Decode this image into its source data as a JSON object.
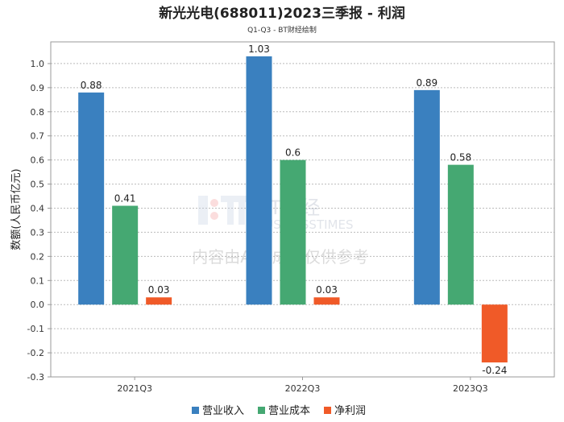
{
  "chart_data": {
    "type": "bar",
    "title": "新光光电(688011)2023三季报 - 利润",
    "subtitle": "Q1-Q3 - BT财经绘制",
    "xlabel": "",
    "ylabel": "数额(人民币亿元)",
    "categories": [
      "2021Q3",
      "2022Q3",
      "2023Q3"
    ],
    "series": [
      {
        "name": "营业收入",
        "color": "#3a80bf",
        "values": [
          0.88,
          1.03,
          0.89
        ],
        "labels": [
          "0.88",
          "1.03",
          "0.89"
        ]
      },
      {
        "name": "营业成本",
        "color": "#45a872",
        "values": [
          0.41,
          0.6,
          0.58
        ],
        "labels": [
          "0.41",
          "0.6",
          "0.58"
        ]
      },
      {
        "name": "净利润",
        "color": "#f05a28",
        "values": [
          0.03,
          0.03,
          -0.24
        ],
        "labels": [
          "0.03",
          "0.03",
          "-0.24"
        ]
      }
    ],
    "ylim": [
      -0.3,
      1.09
    ],
    "yticks": [
      "-0.3",
      "-0.2",
      "-0.1",
      "0.0",
      "0.1",
      "0.2",
      "0.3",
      "0.4",
      "0.5",
      "0.6",
      "0.7",
      "0.8",
      "0.9",
      "1.0"
    ],
    "grid": true,
    "legend": "bottom-center"
  },
  "watermark": {
    "brand": "BT财经",
    "brand_en": "BUSINESSTIMES",
    "notice": "内容由AI生成，仅供参考"
  }
}
